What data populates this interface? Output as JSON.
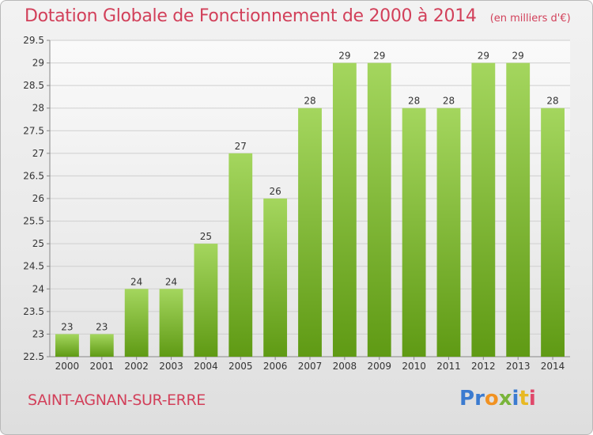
{
  "header": {
    "title": "Dotation Globale de Fonctionnement de 2000 à 2014",
    "units": "(en milliers d'€)"
  },
  "footer": {
    "commune": "SAINT-AGNAN-SUR-ERRE",
    "logo_text": "Proxiti"
  },
  "colors": {
    "title": "#d2405a",
    "bar_light": "#a4d65e",
    "bar_dark": "#5f9a14",
    "grid": "#cfcfcf"
  },
  "chart_data": {
    "type": "bar",
    "title": "Dotation Globale de Fonctionnement de 2000 à 2014",
    "xlabel": "",
    "ylabel": "",
    "categories": [
      "2000",
      "2001",
      "2002",
      "2003",
      "2004",
      "2005",
      "2006",
      "2007",
      "2008",
      "2009",
      "2010",
      "2011",
      "2012",
      "2013",
      "2014"
    ],
    "values": [
      23,
      23,
      24,
      24,
      25,
      27,
      26,
      28,
      29,
      29,
      28,
      28,
      29,
      29,
      28
    ],
    "data_labels": [
      "23",
      "23",
      "24",
      "24",
      "25",
      "27",
      "26",
      "28",
      "29",
      "29",
      "28",
      "28",
      "29",
      "29",
      "28"
    ],
    "ylim": [
      22.5,
      29.5
    ],
    "yticks": [
      22.5,
      23,
      23.5,
      24,
      24.5,
      25,
      25.5,
      26,
      26.5,
      27,
      27.5,
      28,
      28.5,
      29,
      29.5
    ],
    "ytick_labels": [
      "22.5",
      "23",
      "23.5",
      "24",
      "24.5",
      "25",
      "25.5",
      "26",
      "26.5",
      "27",
      "27.5",
      "28",
      "28.5",
      "29",
      "29.5"
    ],
    "grid": true,
    "legend": "none"
  }
}
